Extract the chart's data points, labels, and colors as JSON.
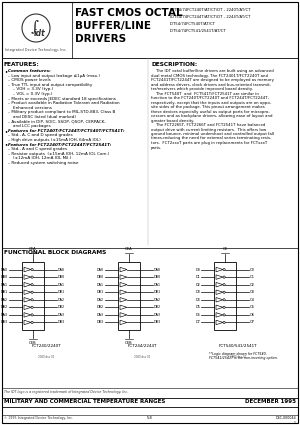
{
  "title": "FAST CMOS OCTAL\nBUFFER/LINE\nDRIVERS",
  "part_numbers_right": [
    "IDT54/74FCT240T/AT/CT/DT - 2240T/AT/CT",
    "IDT54/74FCT244T/AT/CT/DT - 2244T/AT/CT",
    "IDT54/74FCT540T/AT/CT",
    "IDT54/74FCT541/2541T/AT/CT"
  ],
  "features_title": "FEATURES:",
  "features": [
    [
      "bullet",
      "Common features:"
    ],
    [
      "sub1",
      "– Low input and output leakage ≤1μA (max.)"
    ],
    [
      "sub1",
      "– CMOS power levels"
    ],
    [
      "sub1",
      "– True TTL input and output compatibility"
    ],
    [
      "sub2",
      "– VOH = 3.3V (typ.)"
    ],
    [
      "sub2",
      "– VOL = 0.3V (typ.)"
    ],
    [
      "sub1",
      "– Meets or exceeds JEDEC standard 18 specifications"
    ],
    [
      "sub1",
      "– Product available in Radiation Tolerant and Radiation"
    ],
    [
      "sub2",
      "Enhanced versions"
    ],
    [
      "sub1",
      "– Military product compliant to MIL-STD-883, Class B"
    ],
    [
      "sub2",
      "and DESC listed (dual marked)"
    ],
    [
      "sub1",
      "– Available in DIP, SOIC, SSOP, QSOP, CERPACK,"
    ],
    [
      "sub2",
      "and LCC packages"
    ],
    [
      "bullet",
      "Features for FCT240T/FCT244T/FCT540T/FCT541T:"
    ],
    [
      "sub1",
      "– Std., A, C and D speed grades"
    ],
    [
      "sub1",
      "– High drive outputs (±15mA IOH, 64mA IOL)"
    ],
    [
      "bullet",
      "Features for FCT2240T/FCT2244T/FCT2541T:"
    ],
    [
      "sub1",
      "– Std., A and C speed grades"
    ],
    [
      "sub1",
      "– Resistor outputs  (±15mA IOH, 12mA IOL Com.)"
    ],
    [
      "sub2",
      "(±12mA IOH, 12mA IOL Mil.)"
    ],
    [
      "sub1",
      "– Reduced system switching noise"
    ]
  ],
  "description_title": "DESCRIPTION:",
  "description": [
    "    The IDT octal buffer/line drivers are built using an advanced",
    "dual metal CMOS technology. The FCT2401T/FCT2240T and",
    "FCT2441T/FCT2244T are designed to be employed as memory",
    "and address drivers, clock drivers and bus-oriented transmit-",
    "ter/receivers which provide improved board density.",
    "    The FCT540T  and  FCT541T/FCT2541T are similar in",
    "function to the FCT240T/FCT2240T and FCT244T/FCT2244T,",
    "respectively, except that the inputs and outputs are on oppo-",
    "site sides of the package. This pinout arrangement makes",
    "these devices especially useful as output ports for micropro-",
    "cessors and as backplane drivers, allowing ease of layout and",
    "greater board density.",
    "    The FCT2265T, FCT2266T and FCT2541T have balanced",
    "output drive with current limiting resistors.  This offers low",
    "ground bounce, minimal undershoot and controlled output fall",
    "times-reducing the need for external series terminating resis-",
    "tors.  FCT2xxxT parts are plug in replacements for FCTxxxT",
    "parts."
  ],
  "functional_title": "FUNCTIONAL BLOCK DIAGRAMS",
  "diagram1_label": "FCT240/2240T",
  "diagram2_label": "FCT244/2244T",
  "diagram3_label": "FCT540/541/2541T",
  "diagram3_note1": "*Logic diagram shown for FCT540.",
  "diagram3_note2": "FCT541/2541T is the non-inverting option.",
  "footer_trademark": "The IDT logo is a registered trademark of Integrated Device Technology, Inc.",
  "footer_mil": "MILITARY AND COMMERCIAL TEMPERATURE RANGES",
  "footer_date": "DECEMBER 1995",
  "footer_copyright": "© 1995 Integrated Device Technology, Inc.",
  "footer_page": "5-8",
  "footer_doc": "DSC-000044\n1",
  "da_labels": [
    "DA0",
    "DB0",
    "DA1",
    "DB1",
    "DA2",
    "DB2",
    "DA3",
    "DB3"
  ],
  "db_labels": [
    "DA0",
    "DB0",
    "DA1",
    "DB1",
    "DA2",
    "DB2",
    "DA3",
    "DB3"
  ],
  "d_labels": [
    "D0",
    "D1",
    "D2",
    "D3",
    "D4",
    "D5",
    "D6",
    "D7"
  ],
  "o_labels": [
    "O0",
    "O1",
    "O2",
    "O3",
    "O4",
    "O5",
    "O6",
    "O7"
  ]
}
